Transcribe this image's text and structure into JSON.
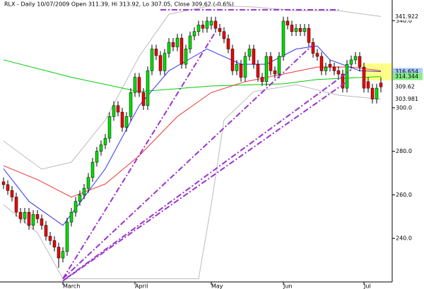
{
  "chart_data": {
    "type": "candlestick",
    "title": "RLX - Daily 10/07/2009 Open 311.39, Hi 313.92, Lo 307.05, Close 309.62 (-0.6%)",
    "up_color": "#00dd00",
    "down_color": "#ee0000",
    "categories": [
      null,
      null,
      null,
      null,
      null,
      null,
      null,
      null,
      null,
      null,
      null,
      null,
      null,
      null,
      "March",
      null,
      null,
      null,
      null,
      null,
      null,
      null,
      null,
      null,
      null,
      null,
      null,
      null,
      null,
      null,
      null,
      "April",
      null,
      null,
      null,
      null,
      null,
      null,
      null,
      null,
      null,
      null,
      null,
      null,
      null,
      null,
      null,
      null,
      null,
      "May",
      null,
      null,
      null,
      null,
      null,
      null,
      null,
      null,
      null,
      null,
      null,
      null,
      null,
      null,
      null,
      null,
      "Jun",
      null,
      null,
      null,
      null,
      null,
      null,
      null,
      null,
      null,
      null,
      null,
      null,
      null,
      null,
      null,
      null,
      null,
      null,
      "Jul",
      null,
      null,
      null,
      null
    ],
    "open": [
      266,
      264.7,
      262,
      259,
      252,
      249,
      252,
      246,
      251,
      249,
      246,
      241,
      239,
      236,
      231,
      234,
      247.5,
      252,
      257,
      260,
      263,
      268,
      275,
      280,
      283,
      286,
      296,
      301,
      298,
      291,
      296,
      307,
      314,
      307,
      301,
      317,
      327,
      324,
      317,
      325,
      330,
      328,
      332,
      320,
      327,
      333,
      335,
      338,
      336.5,
      338,
      339.8,
      336.5,
      335,
      331.7,
      327,
      317,
      320,
      314,
      323.6,
      327,
      320,
      314,
      312,
      323.6,
      317,
      315.5,
      323.6,
      339.8,
      338,
      335,
      336.5,
      335,
      336.5,
      330,
      325,
      323.6,
      317,
      320,
      318.7,
      317,
      315.5,
      309,
      320,
      322,
      323.6,
      318.7,
      312,
      309,
      304,
      311.39
    ],
    "high": [
      268,
      266.7,
      264,
      261,
      254,
      254,
      254,
      253,
      253,
      251,
      248,
      243,
      241,
      238,
      236,
      249.5,
      254,
      259,
      262,
      265,
      270,
      277,
      282,
      285,
      288,
      298,
      303,
      303,
      300,
      298,
      309,
      316,
      316,
      309,
      319,
      329,
      329,
      326,
      327,
      332,
      332,
      334,
      334,
      329,
      335,
      337,
      340,
      340,
      341.8,
      341.8,
      341.8,
      338.5,
      337,
      333.7,
      329,
      322,
      322,
      325.6,
      329,
      329,
      322,
      316,
      325.6,
      325.6,
      319,
      325.6,
      341.8,
      341.8,
      340,
      338.5,
      338.5,
      338.5,
      338.5,
      332,
      327,
      325.6,
      320.7,
      322,
      320.7,
      319,
      317.5,
      322,
      324,
      325.6,
      325.6,
      320.7,
      314,
      311,
      311,
      313.92
    ],
    "low": [
      262.7,
      260,
      257,
      250,
      247,
      247,
      244,
      244,
      247,
      244,
      239,
      237,
      234,
      226.5,
      229,
      232,
      245.5,
      250,
      255,
      258,
      261,
      266,
      273,
      278,
      281,
      284,
      294,
      296,
      289,
      289,
      294,
      305,
      305,
      299,
      299,
      315,
      322,
      315,
      315,
      323,
      326,
      326,
      318,
      318,
      325,
      331,
      333,
      334.5,
      334.5,
      336,
      334.5,
      333,
      329.7,
      325,
      315,
      315,
      312,
      312,
      321.6,
      318,
      312,
      310,
      310,
      315,
      313.5,
      313.5,
      321.6,
      336,
      333,
      333,
      333,
      333,
      328,
      323,
      321.6,
      315,
      315,
      316.7,
      315,
      313.5,
      307,
      307,
      318,
      320,
      316.7,
      307,
      307,
      302,
      302,
      307.05
    ],
    "close": [
      264.7,
      262,
      259,
      252,
      249,
      252,
      246,
      251,
      249,
      246,
      241,
      239,
      236,
      231,
      234,
      247.5,
      252,
      257,
      260,
      263,
      268,
      275,
      280,
      283,
      286,
      296,
      301,
      298,
      291,
      296,
      307,
      314,
      307,
      301,
      317,
      327,
      324,
      317,
      325,
      330,
      328,
      332,
      320,
      327,
      333,
      335,
      338,
      336.5,
      339.8,
      339.8,
      336.5,
      335,
      331.7,
      327,
      317,
      320,
      314,
      323.6,
      327,
      320,
      314,
      312,
      323.6,
      317,
      315.5,
      323.6,
      339.8,
      338,
      335,
      336.5,
      335,
      336.5,
      330,
      325,
      323.6,
      317,
      318.7,
      318.7,
      317,
      315.5,
      309,
      320,
      322,
      323.6,
      318.7,
      309,
      309,
      304,
      309,
      309.62
    ],
    "indicators": [
      {
        "color": "#bbbbbb",
        "x": [
          0,
          9,
          16,
          24,
          32,
          39,
          49,
          59,
          69,
          79,
          89
        ],
        "values": [
          284.7,
          271.8,
          275,
          294.4,
          323.6,
          343,
          346.9,
          346.3,
          344.6,
          344.6,
          341.922
        ]
      },
      {
        "color": "#bbbbbb",
        "x": [
          0,
          8,
          14,
          46,
          49,
          52,
          59,
          69,
          79,
          89
        ],
        "values": [
          255.5,
          242.6,
          221.5,
          221.5,
          255.5,
          294.4,
          307.4,
          310.6,
          305.8,
          303.981
        ]
      },
      {
        "color": "#00cc00",
        "x": [
          0,
          16,
          32,
          49,
          66,
          74,
          89
        ],
        "values": [
          322,
          314,
          307.4,
          310,
          311,
          313,
          314.344
        ]
      },
      {
        "color": "#ee3333",
        "x": [
          0,
          8,
          16,
          24,
          32,
          41,
          49,
          57,
          66,
          74,
          82,
          89
        ],
        "values": [
          273.4,
          267,
          259,
          265,
          278,
          296,
          307,
          312,
          315.5,
          318.7,
          318.7,
          317
        ]
      },
      {
        "color": "#3333ee",
        "x": [
          0,
          6,
          14,
          19,
          24,
          32,
          39,
          48,
          56,
          62,
          69,
          74,
          77,
          84,
          89
        ],
        "values": [
          272,
          257,
          246,
          259,
          272,
          301,
          317,
          327,
          320,
          320,
          327,
          328.4,
          322,
          317,
          316.654
        ]
      }
    ],
    "trendlines": [
      {
        "x": [
          14,
          50
        ],
        "values": [
          221.5,
          334.9
        ]
      },
      {
        "x": [
          14,
          73
        ],
        "values": [
          221.5,
          329
        ]
      },
      {
        "x": [
          15,
          82
        ],
        "values": [
          222,
          317.5
        ]
      },
      {
        "x": [
          14,
          81
        ],
        "values": [
          220.5,
          312
        ]
      },
      {
        "x": [
          37,
          79
        ],
        "values": [
          345,
          345
        ]
      }
    ],
    "trend_color": "#9933cc",
    "ylim": [
      220,
      349.5
    ],
    "yticks": [
      {
        "value": 240,
        "label": "240.0"
      },
      {
        "value": 260,
        "label": "260.0"
      },
      {
        "value": 280,
        "label": "280.0"
      },
      {
        "value": 300,
        "label": "300.0"
      },
      {
        "value": 340,
        "label": "340.0"
      }
    ]
  }
}
